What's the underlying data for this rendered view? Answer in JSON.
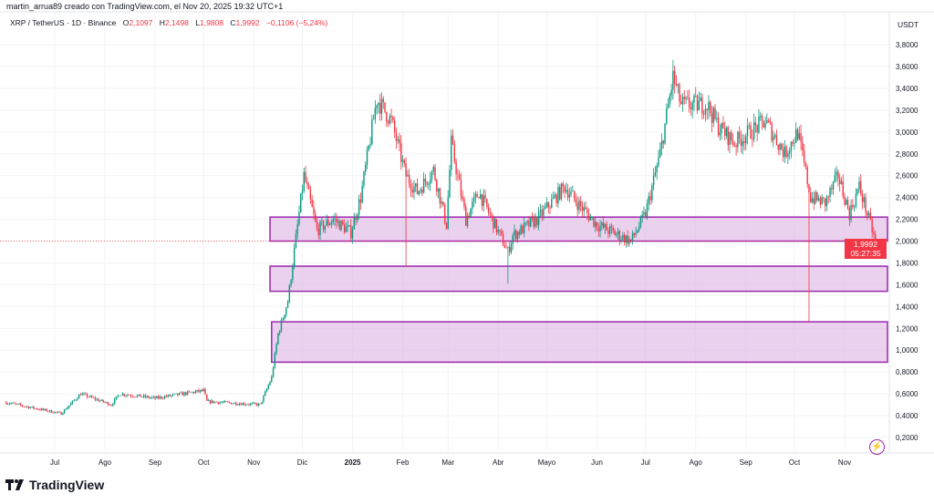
{
  "header": {
    "author_line": "martin_arrua89 creado con TradingView.com, el Nov 20, 2025 19:32 UTC+1",
    "symbol": "XRP / TetherUS · 1D · Binance",
    "open_label": "O",
    "open": "2,1097",
    "high_label": "H",
    "high": "2,1498",
    "low_label": "L",
    "low": "1,9808",
    "close_label": "C",
    "close": "1,9992",
    "change": "−0,1106 (−5,24%)"
  },
  "price_axis": {
    "currency": "USDT"
  },
  "last_price": {
    "value": "1,9992",
    "countdown": "05:27:35"
  },
  "branding": {
    "logo_text": "TradingView"
  },
  "colors": {
    "up": "#089981",
    "down": "#f23645",
    "zone_fill": "#e1bee7",
    "zone_border": "#9c27b0",
    "bolt": "#9c27b0"
  },
  "icons": {
    "bolt": "lightning-icon",
    "logo": "tradingview-logo-icon"
  },
  "chart_data": {
    "type": "candlestick",
    "title": "",
    "xlabel": "",
    "ylabel": "",
    "ylim": [
      0.0,
      3.9
    ],
    "x_range": [
      "2024-06-01",
      "2025-11-20"
    ],
    "grid": true,
    "y_ticks": [
      "0,2000",
      "0,4000",
      "0,6000",
      "0,8000",
      "1,0000",
      "1,2000",
      "1,4000",
      "1,6000",
      "1,8000",
      "2,0000",
      "2,2000",
      "2,4000",
      "2,6000",
      "2,8000",
      "3,0000",
      "3,2000",
      "3,4000",
      "3,6000",
      "3,8000"
    ],
    "x_ticks": [
      {
        "label": "Jul",
        "date": "2024-07-01"
      },
      {
        "label": "Ago",
        "date": "2024-08-01"
      },
      {
        "label": "Sep",
        "date": "2024-09-01"
      },
      {
        "label": "Oct",
        "date": "2024-10-01"
      },
      {
        "label": "Nov",
        "date": "2024-11-01"
      },
      {
        "label": "Dic",
        "date": "2024-12-01"
      },
      {
        "label": "2025",
        "date": "2025-01-01"
      },
      {
        "label": "Feb",
        "date": "2025-02-01"
      },
      {
        "label": "Mar",
        "date": "2025-03-01"
      },
      {
        "label": "Abr",
        "date": "2025-04-01"
      },
      {
        "label": "Mayo",
        "date": "2025-05-01"
      },
      {
        "label": "Jun",
        "date": "2025-06-01"
      },
      {
        "label": "Jul",
        "date": "2025-07-01"
      },
      {
        "label": "Ago",
        "date": "2025-08-01"
      },
      {
        "label": "Sep",
        "date": "2025-09-01"
      },
      {
        "label": "Oct",
        "date": "2025-10-01"
      },
      {
        "label": "Nov",
        "date": "2025-11-01"
      }
    ],
    "approx_close_path": [
      [
        "2024-06-01",
        0.52
      ],
      [
        "2024-07-05",
        0.42
      ],
      [
        "2024-07-17",
        0.6
      ],
      [
        "2024-08-05",
        0.5
      ],
      [
        "2024-08-10",
        0.6
      ],
      [
        "2024-09-01",
        0.56
      ],
      [
        "2024-10-01",
        0.63
      ],
      [
        "2024-10-03",
        0.53
      ],
      [
        "2024-11-05",
        0.5
      ],
      [
        "2024-11-12",
        0.75
      ],
      [
        "2024-11-16",
        1.15
      ],
      [
        "2024-11-22",
        1.45
      ],
      [
        "2024-12-02",
        2.6
      ],
      [
        "2024-12-10",
        2.1
      ],
      [
        "2024-12-20",
        2.2
      ],
      [
        "2024-12-31",
        2.08
      ],
      [
        "2025-01-06",
        2.4
      ],
      [
        "2025-01-16",
        3.3
      ],
      [
        "2025-01-25",
        3.1
      ],
      [
        "2025-02-03",
        2.6
      ],
      [
        "2025-02-10",
        2.45
      ],
      [
        "2025-02-20",
        2.65
      ],
      [
        "2025-02-28",
        2.15
      ],
      [
        "2025-03-03",
        2.9
      ],
      [
        "2025-03-12",
        2.2
      ],
      [
        "2025-03-20",
        2.45
      ],
      [
        "2025-04-07",
        1.9
      ],
      [
        "2025-04-10",
        2.05
      ],
      [
        "2025-04-25",
        2.2
      ],
      [
        "2025-05-12",
        2.5
      ],
      [
        "2025-05-20",
        2.35
      ],
      [
        "2025-06-01",
        2.15
      ],
      [
        "2025-06-22",
        2.0
      ],
      [
        "2025-07-01",
        2.25
      ],
      [
        "2025-07-10",
        2.8
      ],
      [
        "2025-07-18",
        3.5
      ],
      [
        "2025-07-23",
        3.25
      ],
      [
        "2025-08-08",
        3.25
      ],
      [
        "2025-08-15",
        3.05
      ],
      [
        "2025-08-25",
        2.9
      ],
      [
        "2025-09-13",
        3.1
      ],
      [
        "2025-09-25",
        2.8
      ],
      [
        "2025-10-03",
        3.0
      ],
      [
        "2025-10-11",
        2.4
      ],
      [
        "2025-10-20",
        2.35
      ],
      [
        "2025-10-28",
        2.6
      ],
      [
        "2025-11-04",
        2.25
      ],
      [
        "2025-11-10",
        2.5
      ],
      [
        "2025-11-20",
        2.0
      ]
    ],
    "notable_wicks": [
      {
        "date": "2025-02-03",
        "low": 1.77
      },
      {
        "date": "2025-04-07",
        "low": 1.61
      },
      {
        "date": "2025-10-10",
        "low": 1.26
      },
      {
        "date": "2025-07-18",
        "high": 3.66
      }
    ],
    "zones": [
      {
        "from": "2024-11-11",
        "low": 2.0,
        "high": 2.22
      },
      {
        "from": "2024-11-11",
        "low": 1.54,
        "high": 1.77
      },
      {
        "from": "2024-11-12",
        "low": 0.89,
        "high": 1.26
      }
    ],
    "last_price": 1.9992
  }
}
